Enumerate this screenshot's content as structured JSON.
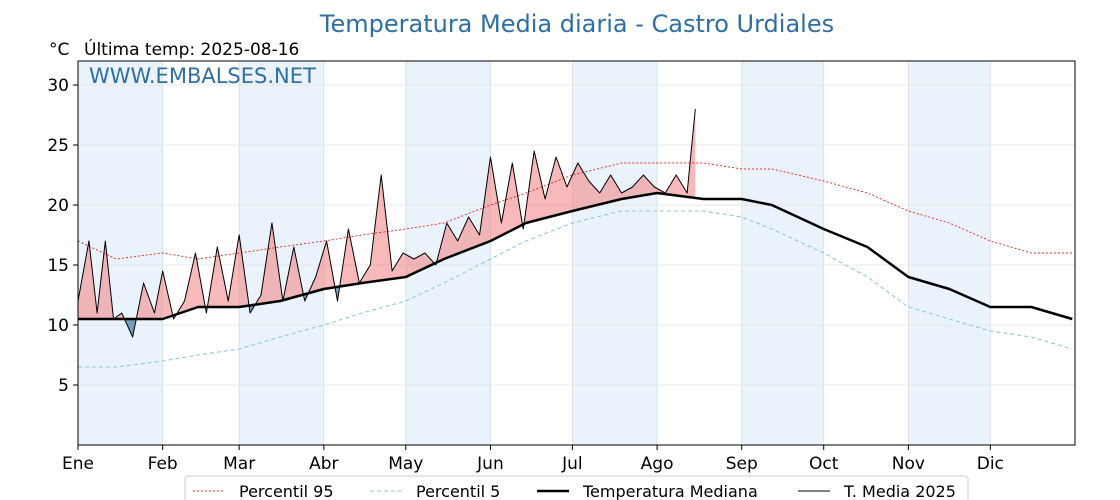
{
  "page": {
    "title": "Temperatura Media diaria - Castro Urdiales",
    "unit": "°C",
    "last_temp": "Última temp: 2025-08-16",
    "watermark": "WWW.EMBALSES.NET"
  },
  "chart_data": {
    "type": "line",
    "title": "Temperatura Media diaria - Castro Urdiales",
    "ylabel": "°C",
    "ylim": [
      0,
      32
    ],
    "yticks": [
      5,
      10,
      15,
      20,
      25,
      30
    ],
    "xlim": [
      1,
      366
    ],
    "month_labels": [
      "Ene",
      "Feb",
      "Mar",
      "Abr",
      "May",
      "Jun",
      "Jul",
      "Ago",
      "Sep",
      "Oct",
      "Nov",
      "Dic"
    ],
    "month_start_days": [
      1,
      32,
      60,
      91,
      121,
      152,
      182,
      213,
      244,
      274,
      305,
      335
    ],
    "grid": true,
    "legend_position": "bottom",
    "colors": {
      "p95": "#e8231d",
      "p5": "#8ec9dc",
      "median": "#000000",
      "media2025": "#000000",
      "above": "#f08080",
      "below": "#4f7fa8",
      "band": "#eaf3fb"
    },
    "series": [
      {
        "name": "Percentil 95",
        "key": "p95",
        "style": "dotted",
        "x": [
          1,
          15,
          32,
          45,
          60,
          75,
          91,
          105,
          121,
          135,
          152,
          165,
          182,
          200,
          213,
          230,
          244,
          255,
          274,
          290,
          305,
          320,
          335,
          350,
          365
        ],
        "y": [
          17.0,
          15.5,
          16.0,
          15.5,
          16.0,
          16.5,
          17.0,
          17.5,
          18.0,
          18.5,
          20.0,
          21.0,
          22.5,
          23.5,
          23.5,
          23.5,
          23.0,
          23.0,
          22.0,
          21.0,
          19.5,
          18.5,
          17.0,
          16.0,
          16.0
        ]
      },
      {
        "name": "Percentil 5",
        "key": "p5",
        "style": "dashed",
        "x": [
          1,
          15,
          32,
          45,
          60,
          75,
          91,
          105,
          121,
          135,
          152,
          165,
          182,
          200,
          213,
          230,
          244,
          255,
          274,
          290,
          305,
          320,
          335,
          350,
          365
        ],
        "y": [
          6.5,
          6.5,
          7.0,
          7.5,
          8.0,
          9.0,
          10.0,
          11.0,
          12.0,
          13.5,
          15.5,
          17.0,
          18.5,
          19.5,
          19.5,
          19.5,
          19.0,
          18.0,
          16.0,
          14.0,
          11.5,
          10.5,
          9.5,
          9.0,
          8.0
        ]
      },
      {
        "name": "Temperatura Mediana",
        "key": "median",
        "style": "solid-thick",
        "x": [
          1,
          15,
          32,
          45,
          60,
          75,
          91,
          105,
          121,
          135,
          152,
          165,
          182,
          200,
          213,
          230,
          244,
          255,
          274,
          290,
          305,
          320,
          335,
          350,
          365
        ],
        "y": [
          10.5,
          10.5,
          10.5,
          11.5,
          11.5,
          12.0,
          13.0,
          13.5,
          14.0,
          15.5,
          17.0,
          18.5,
          19.5,
          20.5,
          21.0,
          20.5,
          20.5,
          20.0,
          18.0,
          16.5,
          14.0,
          13.0,
          11.5,
          11.5,
          10.5
        ]
      },
      {
        "name": "T. Media 2025",
        "key": "media2025",
        "style": "solid",
        "x": [
          1,
          5,
          8,
          11,
          14,
          17,
          21,
          25,
          29,
          32,
          36,
          40,
          44,
          48,
          52,
          56,
          60,
          64,
          68,
          72,
          76,
          80,
          84,
          88,
          92,
          96,
          100,
          104,
          108,
          112,
          116,
          120,
          124,
          128,
          132,
          136,
          140,
          144,
          148,
          152,
          156,
          160,
          164,
          168,
          172,
          176,
          180,
          184,
          188,
          192,
          196,
          200,
          204,
          208,
          212,
          216,
          220,
          224,
          227
        ],
        "y": [
          12.0,
          17.0,
          11.0,
          17.0,
          10.5,
          11.0,
          9.0,
          13.5,
          11.0,
          14.5,
          10.5,
          12.0,
          16.0,
          11.0,
          16.5,
          12.0,
          17.5,
          11.0,
          12.5,
          18.5,
          12.0,
          16.5,
          12.0,
          14.0,
          17.0,
          12.0,
          18.0,
          13.5,
          15.0,
          22.5,
          14.5,
          16.0,
          15.5,
          16.0,
          15.0,
          18.5,
          17.0,
          19.0,
          17.5,
          24.0,
          18.5,
          23.5,
          18.0,
          24.5,
          20.5,
          24.0,
          21.5,
          23.5,
          22.0,
          21.0,
          22.5,
          21.0,
          21.5,
          22.5,
          21.5,
          21.0,
          22.5,
          21.0,
          28.0
        ]
      }
    ]
  }
}
